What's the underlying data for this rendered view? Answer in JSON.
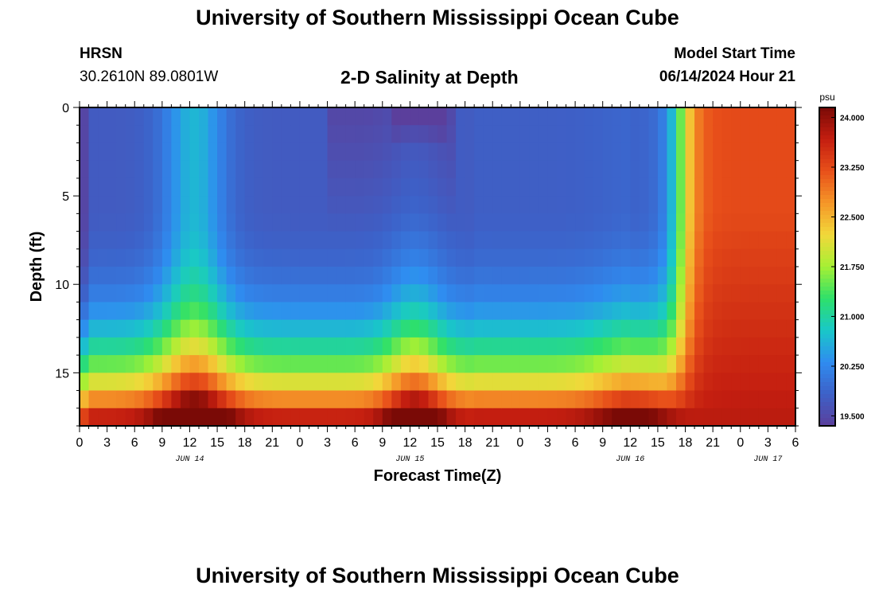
{
  "page": {
    "title": "University of Southern Mississippi Ocean Cube",
    "footer_title": "University of Southern Mississippi Ocean Cube",
    "station": "HRSN",
    "coords": "30.2610N  89.0801W",
    "chart_title": "2-D Salinity at Depth",
    "model_start_label": "Model Start Time",
    "model_start_value": "06/14/2024 Hour 21"
  },
  "chart_data": {
    "type": "heatmap",
    "title": "2-D Salinity at Depth",
    "xlabel": "Forecast Time(Z)",
    "ylabel": "Depth (ft)",
    "x_tick_labels": [
      "0",
      "3",
      "6",
      "9",
      "12",
      "15",
      "18",
      "21",
      "0",
      "3",
      "6",
      "9",
      "12",
      "15",
      "18",
      "21",
      "0",
      "3",
      "6",
      "9",
      "12",
      "15",
      "18",
      "21",
      "0",
      "3",
      "6"
    ],
    "date_labels": [
      {
        "label": "JUN 14",
        "hour_index": 12
      },
      {
        "label": "JUN 15",
        "hour_index": 36
      },
      {
        "label": "JUN 16",
        "hour_index": 60
      },
      {
        "label": "JUN 17",
        "hour_index": 75
      }
    ],
    "x_range_hours": [
      0,
      78
    ],
    "y_ticks": [
      0,
      5,
      10,
      15
    ],
    "y_range_ft": [
      0,
      18
    ],
    "colorbar": {
      "unit": "psu",
      "ticks": [
        "24.000",
        "23.250",
        "22.500",
        "21.750",
        "21.000",
        "20.250",
        "19.500"
      ],
      "range": [
        19.35,
        24.15
      ],
      "colors": [
        "#5b3f9c",
        "#3d61c8",
        "#2f8cf0",
        "#19c8c8",
        "#2ee06a",
        "#a6f034",
        "#f2d83a",
        "#f59628",
        "#e8501a",
        "#c41e10",
        "#7a0a06"
      ]
    },
    "grid": false
  }
}
